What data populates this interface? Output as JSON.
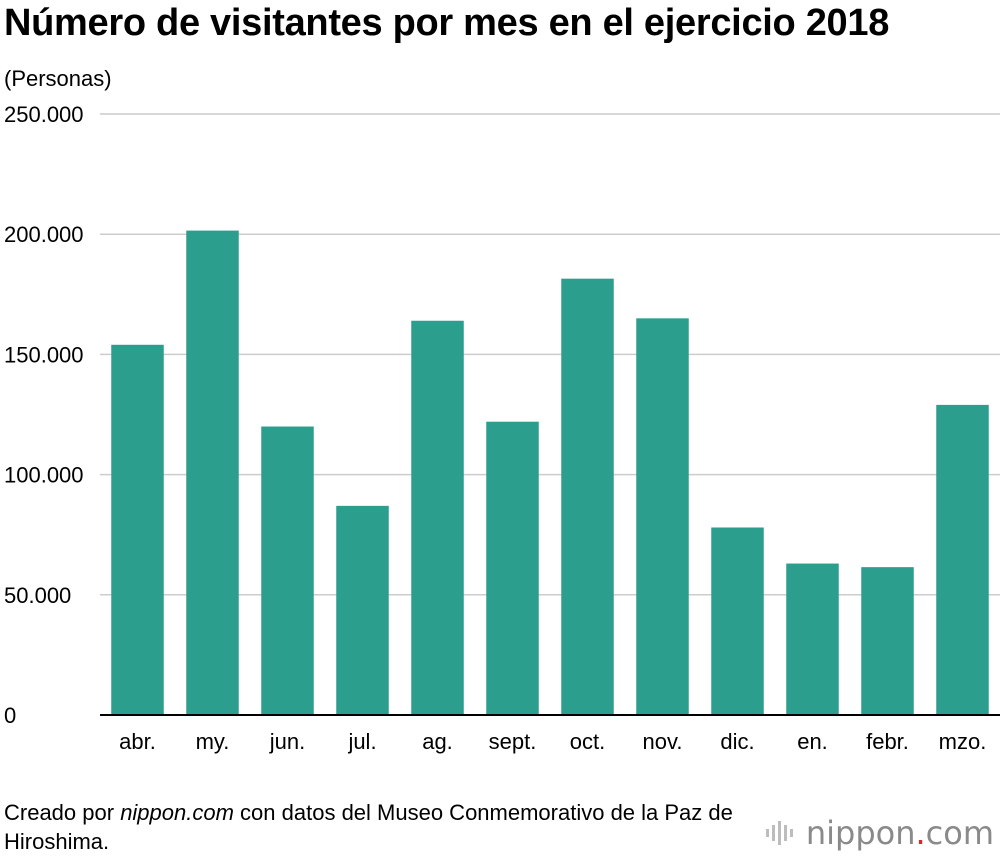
{
  "title": "Número de visitantes por mes en el ejercicio 2018",
  "unit_label": "(Personas)",
  "footer": {
    "prefix": "Creado por ",
    "site": "nippon.com",
    "suffix": " con datos del Museo Conmemorativo de la Paz de Hiroshima."
  },
  "brand": {
    "name": "nippon",
    "dot": ".",
    "tld": "com"
  },
  "colors": {
    "bar": "#2b9e8e",
    "grid": "#cccccc",
    "axis": "#000000",
    "brand_dot": "#e0232c"
  },
  "chart_data": {
    "type": "bar",
    "title": "Número de visitantes por mes en el ejercicio 2018",
    "xlabel": "",
    "ylabel": "(Personas)",
    "ylim": [
      0,
      250000
    ],
    "yticks": [
      0,
      50000,
      100000,
      150000,
      200000,
      250000
    ],
    "ytick_labels": [
      "0",
      "50.000",
      "100.000",
      "150.000",
      "200.000",
      "250.000"
    ],
    "categories": [
      "abr.",
      "my.",
      "jun.",
      "jul.",
      "ag.",
      "sept.",
      "oct.",
      "nov.",
      "dic.",
      "en.",
      "febr.",
      "mzo."
    ],
    "values": [
      154000,
      201500,
      120000,
      87000,
      164000,
      122000,
      181500,
      165000,
      78000,
      63000,
      61500,
      129000
    ],
    "grid": true
  }
}
